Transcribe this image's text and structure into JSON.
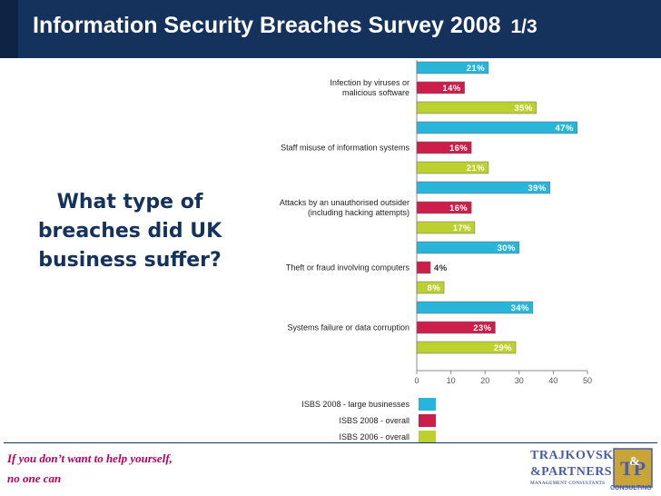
{
  "header": {
    "title": "Information Security Breaches Survey 2008",
    "page": "1/3"
  },
  "question": "What type of breaches did UK business suffer?",
  "footer": {
    "motto_line1": "If you don’t want to help yourself,",
    "motto_line2": "no one can"
  },
  "logo": {
    "line1": "TRAJKOVSKI",
    "line2": "&PARTNERS",
    "line3": "MANAGEMENT CONSULTANTS",
    "mark": "TP",
    "mark_amp": "&",
    "consult": "CONSULTING"
  },
  "colors": {
    "header_bg": "#14325c",
    "series_2008_large": "#29b5d9",
    "series_2008_overall": "#cc1e4a",
    "series_2006_overall": "#bcd12f"
  },
  "chart_data": {
    "type": "bar",
    "orientation": "horizontal",
    "categories": [
      [
        "Infection by viruses or",
        "malicious software"
      ],
      [
        "Staff misuse of information systems"
      ],
      [
        "Attacks by an unauthorised outsider",
        "(including hacking attempts)"
      ],
      [
        "Theft or fraud involving computers"
      ],
      [
        "Systems failure or data corruption"
      ]
    ],
    "series": [
      {
        "name": "ISBS 2008 - large businesses",
        "values": [
          21,
          47,
          39,
          30,
          34
        ],
        "color": "#29b5d9"
      },
      {
        "name": "ISBS 2008 - overall",
        "values": [
          14,
          16,
          16,
          4,
          23
        ],
        "color": "#cc1e4a"
      },
      {
        "name": "ISBS 2006 - overall",
        "values": [
          35,
          21,
          17,
          8,
          29
        ],
        "color": "#bcd12f"
      }
    ],
    "xlim": [
      0,
      50
    ],
    "xticks": [
      0,
      10,
      20,
      30,
      40,
      50
    ],
    "value_suffix": "%",
    "legend_position": "bottom"
  }
}
